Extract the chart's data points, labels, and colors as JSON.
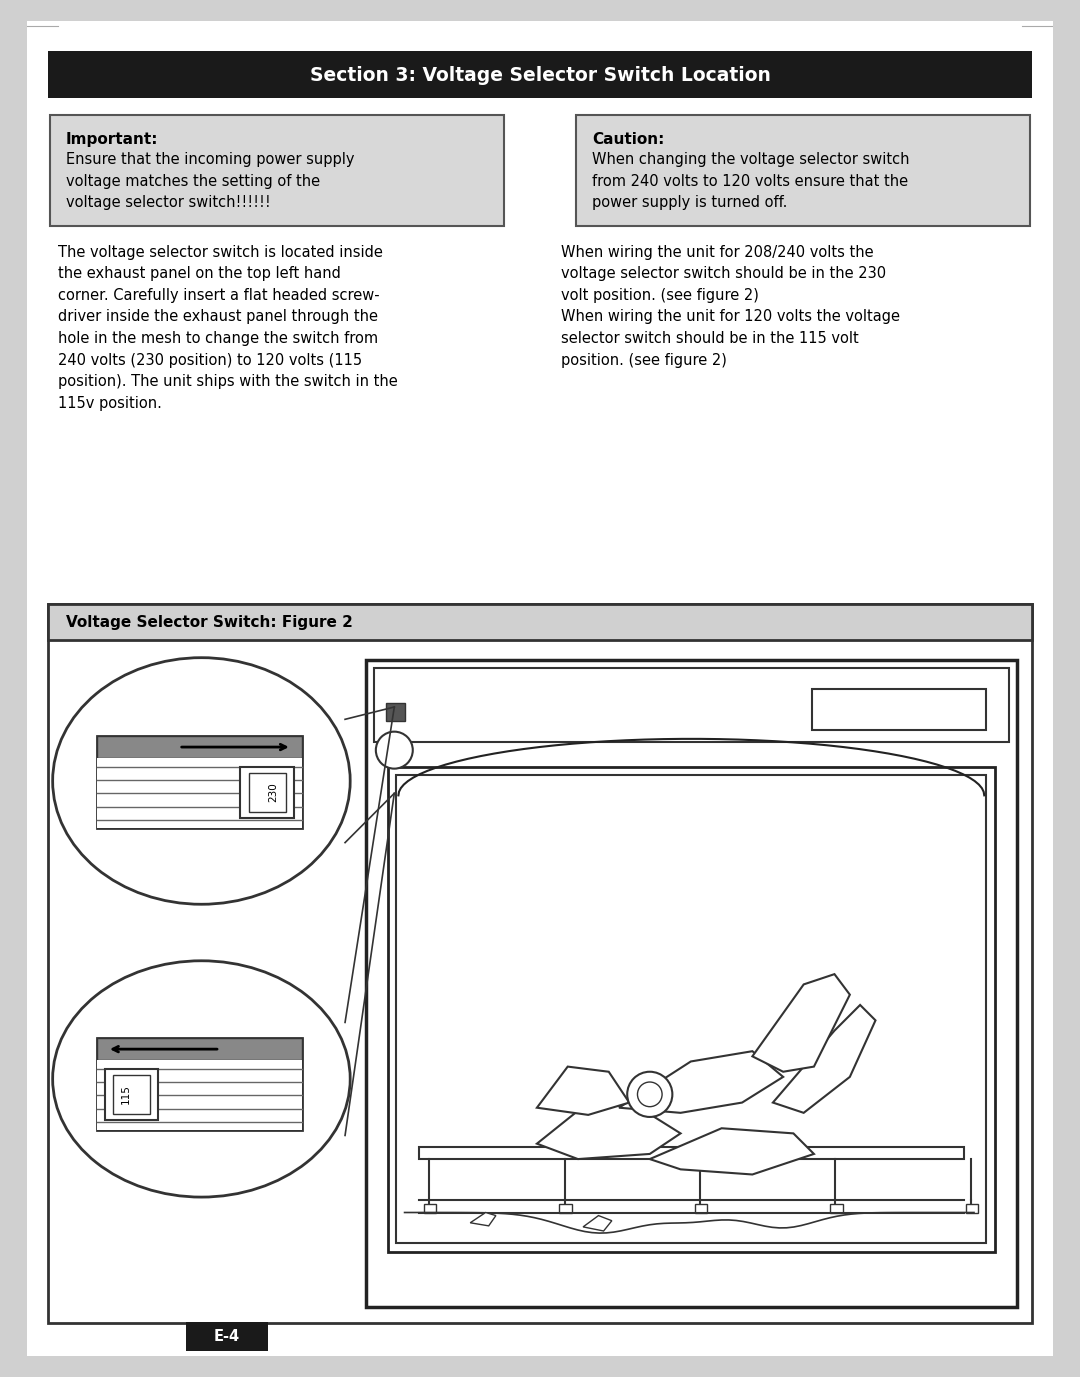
{
  "title": "Section 3: Voltage Selector Switch Location",
  "page_bg": "#ffffff",
  "outer_bg": "#e8e8e8",
  "box_bg": "#d8d8d8",
  "box_border": "#555555",
  "important_title": "Important:",
  "important_text": "Ensure that the incoming power supply\nvoltage matches the setting of the\nvoltage selector switch!!!!!!",
  "caution_title": "Caution:",
  "caution_text": "When changing the voltage selector switch\nfrom 240 volts to 120 volts ensure that the\npower supply is turned off.",
  "left_para": "The voltage selector switch is located inside\nthe exhaust panel on the top left hand\ncorner. Carefully insert a flat headed screw-\ndriver inside the exhaust panel through the\nhole in the mesh to change the switch from\n240 volts (230 position) to 120 volts (115\nposition). The unit ships with the switch in the\n115v position.",
  "right_para": "When wiring the unit for 208/240 volts the\nvoltage selector switch should be in the 230\nvolt position. (see figure 2)\nWhen wiring the unit for 120 volts the voltage\nselector switch should be in the 115 volt\nposition. (see figure 2)",
  "figure_title": "Voltage Selector Switch: Figure 2",
  "page_number": "E-4"
}
